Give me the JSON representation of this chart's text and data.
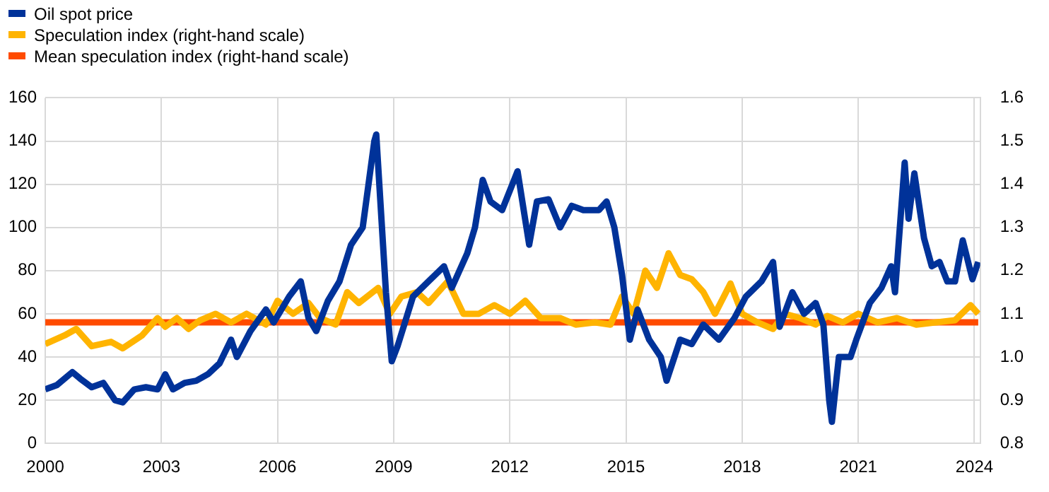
{
  "chart_data": {
    "type": "line",
    "legend": "top left",
    "grid": true,
    "marker": "none",
    "line_style": "solid",
    "xlim": [
      2000,
      2024.15
    ],
    "xticks": [
      2000,
      2003,
      2006,
      2009,
      2012,
      2015,
      2018,
      2021,
      2024
    ],
    "ylim": [
      0,
      160
    ],
    "yticks": [
      0,
      20,
      40,
      60,
      80,
      100,
      120,
      140,
      160
    ],
    "y2lim": [
      0.8,
      1.6
    ],
    "y2ticks": [
      0.8,
      0.9,
      {
        "value": 1,
        "label": "1.0"
      },
      1.1,
      1.2,
      1.3,
      1.4,
      1.5,
      1.6
    ],
    "series": [
      {
        "name": "Oil spot price",
        "color": "#003299",
        "x": [
          2000.0,
          2000.3,
          2000.7,
          2000.9,
          2001.2,
          2001.5,
          2001.8,
          2002.0,
          2002.3,
          2002.6,
          2002.9,
          2003.1,
          2003.3,
          2003.6,
          2003.9,
          2004.2,
          2004.5,
          2004.8,
          2004.95,
          2005.3,
          2005.7,
          2005.9,
          2006.3,
          2006.6,
          2006.8,
          2007.0,
          2007.3,
          2007.6,
          2007.9,
          2008.2,
          2008.5,
          2008.55,
          2008.8,
          2008.95,
          2009.1,
          2009.5,
          2009.9,
          2010.3,
          2010.5,
          2010.9,
          2011.1,
          2011.3,
          2011.5,
          2011.8,
          2012.2,
          2012.5,
          2012.7,
          2013.0,
          2013.3,
          2013.6,
          2013.9,
          2014.3,
          2014.5,
          2014.7,
          2014.9,
          2015.1,
          2015.3,
          2015.6,
          2015.9,
          2016.05,
          2016.4,
          2016.7,
          2017.0,
          2017.4,
          2017.8,
          2018.1,
          2018.5,
          2018.8,
          2018.97,
          2019.3,
          2019.6,
          2019.9,
          2020.1,
          2020.25,
          2020.32,
          2020.5,
          2020.8,
          2020.95,
          2021.3,
          2021.6,
          2021.85,
          2021.95,
          2022.2,
          2022.3,
          2022.45,
          2022.7,
          2022.9,
          2023.1,
          2023.3,
          2023.5,
          2023.7,
          2023.95,
          2024.1
        ],
        "values": [
          25,
          27,
          33,
          30,
          26,
          28,
          20,
          19,
          25,
          26,
          25,
          32,
          25,
          28,
          29,
          32,
          37,
          48,
          40,
          52,
          62,
          56,
          68,
          75,
          58,
          52,
          66,
          75,
          92,
          100,
          140,
          143,
          70,
          38,
          45,
          68,
          75,
          82,
          72,
          88,
          100,
          122,
          112,
          108,
          126,
          92,
          112,
          113,
          100,
          110,
          108,
          108,
          112,
          100,
          78,
          48,
          62,
          48,
          40,
          29,
          48,
          46,
          55,
          48,
          58,
          68,
          75,
          84,
          54,
          70,
          60,
          65,
          55,
          20,
          10,
          40,
          40,
          48,
          65,
          72,
          82,
          70,
          130,
          104,
          125,
          95,
          82,
          84,
          75,
          75,
          94,
          76,
          84
        ]
      },
      {
        "name": "Speculation index (right-hand scale)",
        "color": "#ffb400",
        "axis": "y2",
        "x": [
          2000.0,
          2000.5,
          2000.8,
          2001.2,
          2001.7,
          2002.0,
          2002.5,
          2002.9,
          2003.1,
          2003.4,
          2003.7,
          2004.0,
          2004.4,
          2004.8,
          2005.2,
          2005.7,
          2006.0,
          2006.4,
          2006.8,
          2007.1,
          2007.5,
          2007.8,
          2008.1,
          2008.6,
          2008.9,
          2009.2,
          2009.6,
          2009.9,
          2010.4,
          2010.8,
          2011.2,
          2011.6,
          2012.0,
          2012.4,
          2012.8,
          2013.3,
          2013.7,
          2014.2,
          2014.6,
          2014.9,
          2015.2,
          2015.5,
          2015.8,
          2016.1,
          2016.4,
          2016.7,
          2017.0,
          2017.3,
          2017.7,
          2018.0,
          2018.4,
          2018.8,
          2019.1,
          2019.5,
          2019.9,
          2020.2,
          2020.6,
          2021.0,
          2021.5,
          2022.0,
          2022.5,
          2023.0,
          2023.5,
          2023.9,
          2024.1
        ],
        "values": [
          1.03,
          1.05,
          1.065,
          1.025,
          1.035,
          1.02,
          1.05,
          1.09,
          1.07,
          1.09,
          1.065,
          1.085,
          1.1,
          1.08,
          1.1,
          1.075,
          1.13,
          1.1,
          1.125,
          1.09,
          1.075,
          1.15,
          1.125,
          1.16,
          1.1,
          1.14,
          1.15,
          1.125,
          1.175,
          1.1,
          1.1,
          1.12,
          1.1,
          1.13,
          1.09,
          1.09,
          1.075,
          1.08,
          1.075,
          1.14,
          1.1,
          1.2,
          1.16,
          1.24,
          1.19,
          1.18,
          1.15,
          1.1,
          1.17,
          1.1,
          1.08,
          1.065,
          1.1,
          1.09,
          1.075,
          1.095,
          1.08,
          1.1,
          1.08,
          1.09,
          1.075,
          1.08,
          1.085,
          1.12,
          1.1
        ]
      },
      {
        "name": "Mean speculation index (right-hand scale)",
        "color": "#ff4b00",
        "axis": "y2",
        "x": [
          2000.0,
          2024.1
        ],
        "values": [
          1.08,
          1.08
        ]
      }
    ]
  }
}
